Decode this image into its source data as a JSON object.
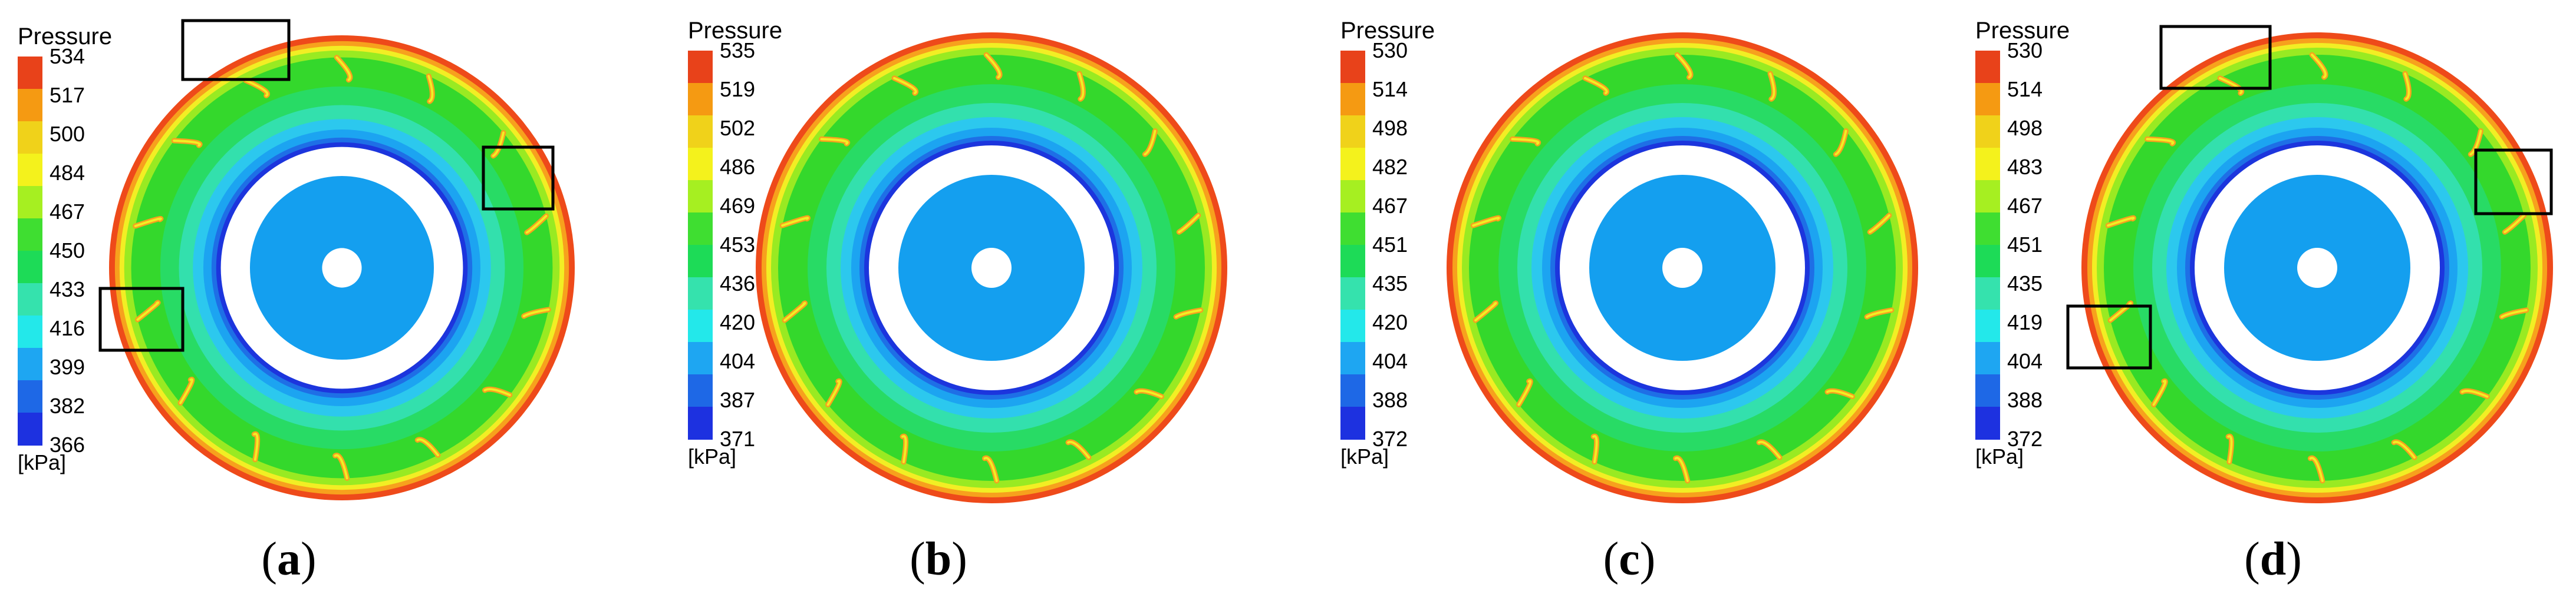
{
  "figure": {
    "panels": [
      {
        "caption_open": "(",
        "caption_letter": "a",
        "caption_close": ")",
        "legend_title": "Pressure",
        "ticks": [
          "534",
          "517",
          "500",
          "484",
          "467",
          "450",
          "433",
          "416",
          "399",
          "382",
          "366"
        ],
        "unit": "[kPa]",
        "highlight_boxes": 3
      },
      {
        "caption_open": "(",
        "caption_letter": "b",
        "caption_close": ")",
        "legend_title": "Pressure",
        "ticks": [
          "535",
          "519",
          "502",
          "486",
          "469",
          "453",
          "436",
          "420",
          "404",
          "387",
          "371"
        ],
        "unit": "[kPa]",
        "highlight_boxes": 0
      },
      {
        "caption_open": "(",
        "caption_letter": "c",
        "caption_close": ")",
        "legend_title": "Pressure",
        "ticks": [
          "530",
          "514",
          "498",
          "482",
          "467",
          "451",
          "435",
          "420",
          "404",
          "388",
          "372"
        ],
        "unit": "[kPa]",
        "highlight_boxes": 0
      },
      {
        "caption_open": "(",
        "caption_letter": "d",
        "caption_close": ")",
        "legend_title": "Pressure",
        "ticks": [
          "530",
          "514",
          "498",
          "483",
          "467",
          "451",
          "435",
          "419",
          "404",
          "388",
          "372"
        ],
        "unit": "[kPa]",
        "highlight_boxes": 3
      }
    ],
    "colormap": [
      "#e8421a",
      "#f59a12",
      "#f0d21a",
      "#f4f21c",
      "#a6ef21",
      "#3fde31",
      "#1ddb57",
      "#35e2ad",
      "#23e8ea",
      "#1ea6f2",
      "#1e68e6",
      "#1d31e0"
    ],
    "contour_colors": {
      "outer_red": "#ee4a1a",
      "orange": "#f7a11d",
      "yellow": "#f2ee24",
      "light_green": "#99ea22",
      "green": "#34d82c",
      "green_teal": "#28db65",
      "teal": "#33e0ad",
      "cyan": "#2cc8ee",
      "light_blue": "#1ca4f1",
      "mid_blue": "#1e6fe6",
      "deep_blue": "#1c35dd",
      "core_blue": "#149fef"
    }
  }
}
